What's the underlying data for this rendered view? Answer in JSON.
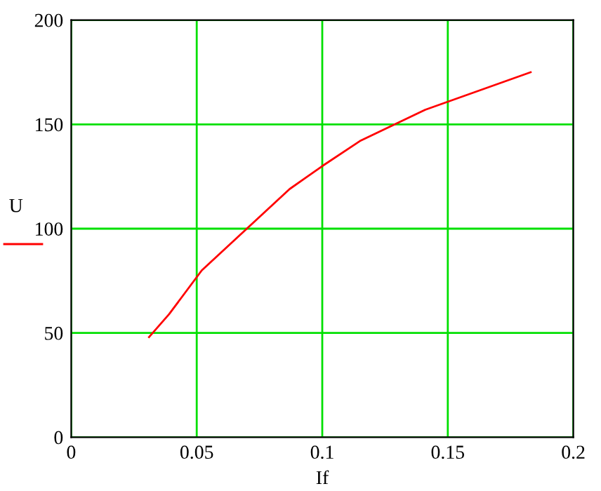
{
  "chart_data": {
    "type": "line",
    "xlabel": "If",
    "ylabel": "U",
    "x": [
      0.031,
      0.039,
      0.052,
      0.087,
      0.1,
      0.115,
      0.141,
      0.183
    ],
    "series": [
      {
        "color": "#ff0000",
        "values": [
          48,
          59,
          80,
          119,
          130,
          142,
          157,
          175
        ]
      }
    ],
    "xlim": [
      0,
      0.2
    ],
    "xticks": [
      0,
      0.05,
      0.1,
      0.15,
      0.2
    ],
    "ylim": [
      0,
      200
    ],
    "yticks": [
      0,
      50,
      100,
      150,
      200
    ],
    "grid": true
  }
}
